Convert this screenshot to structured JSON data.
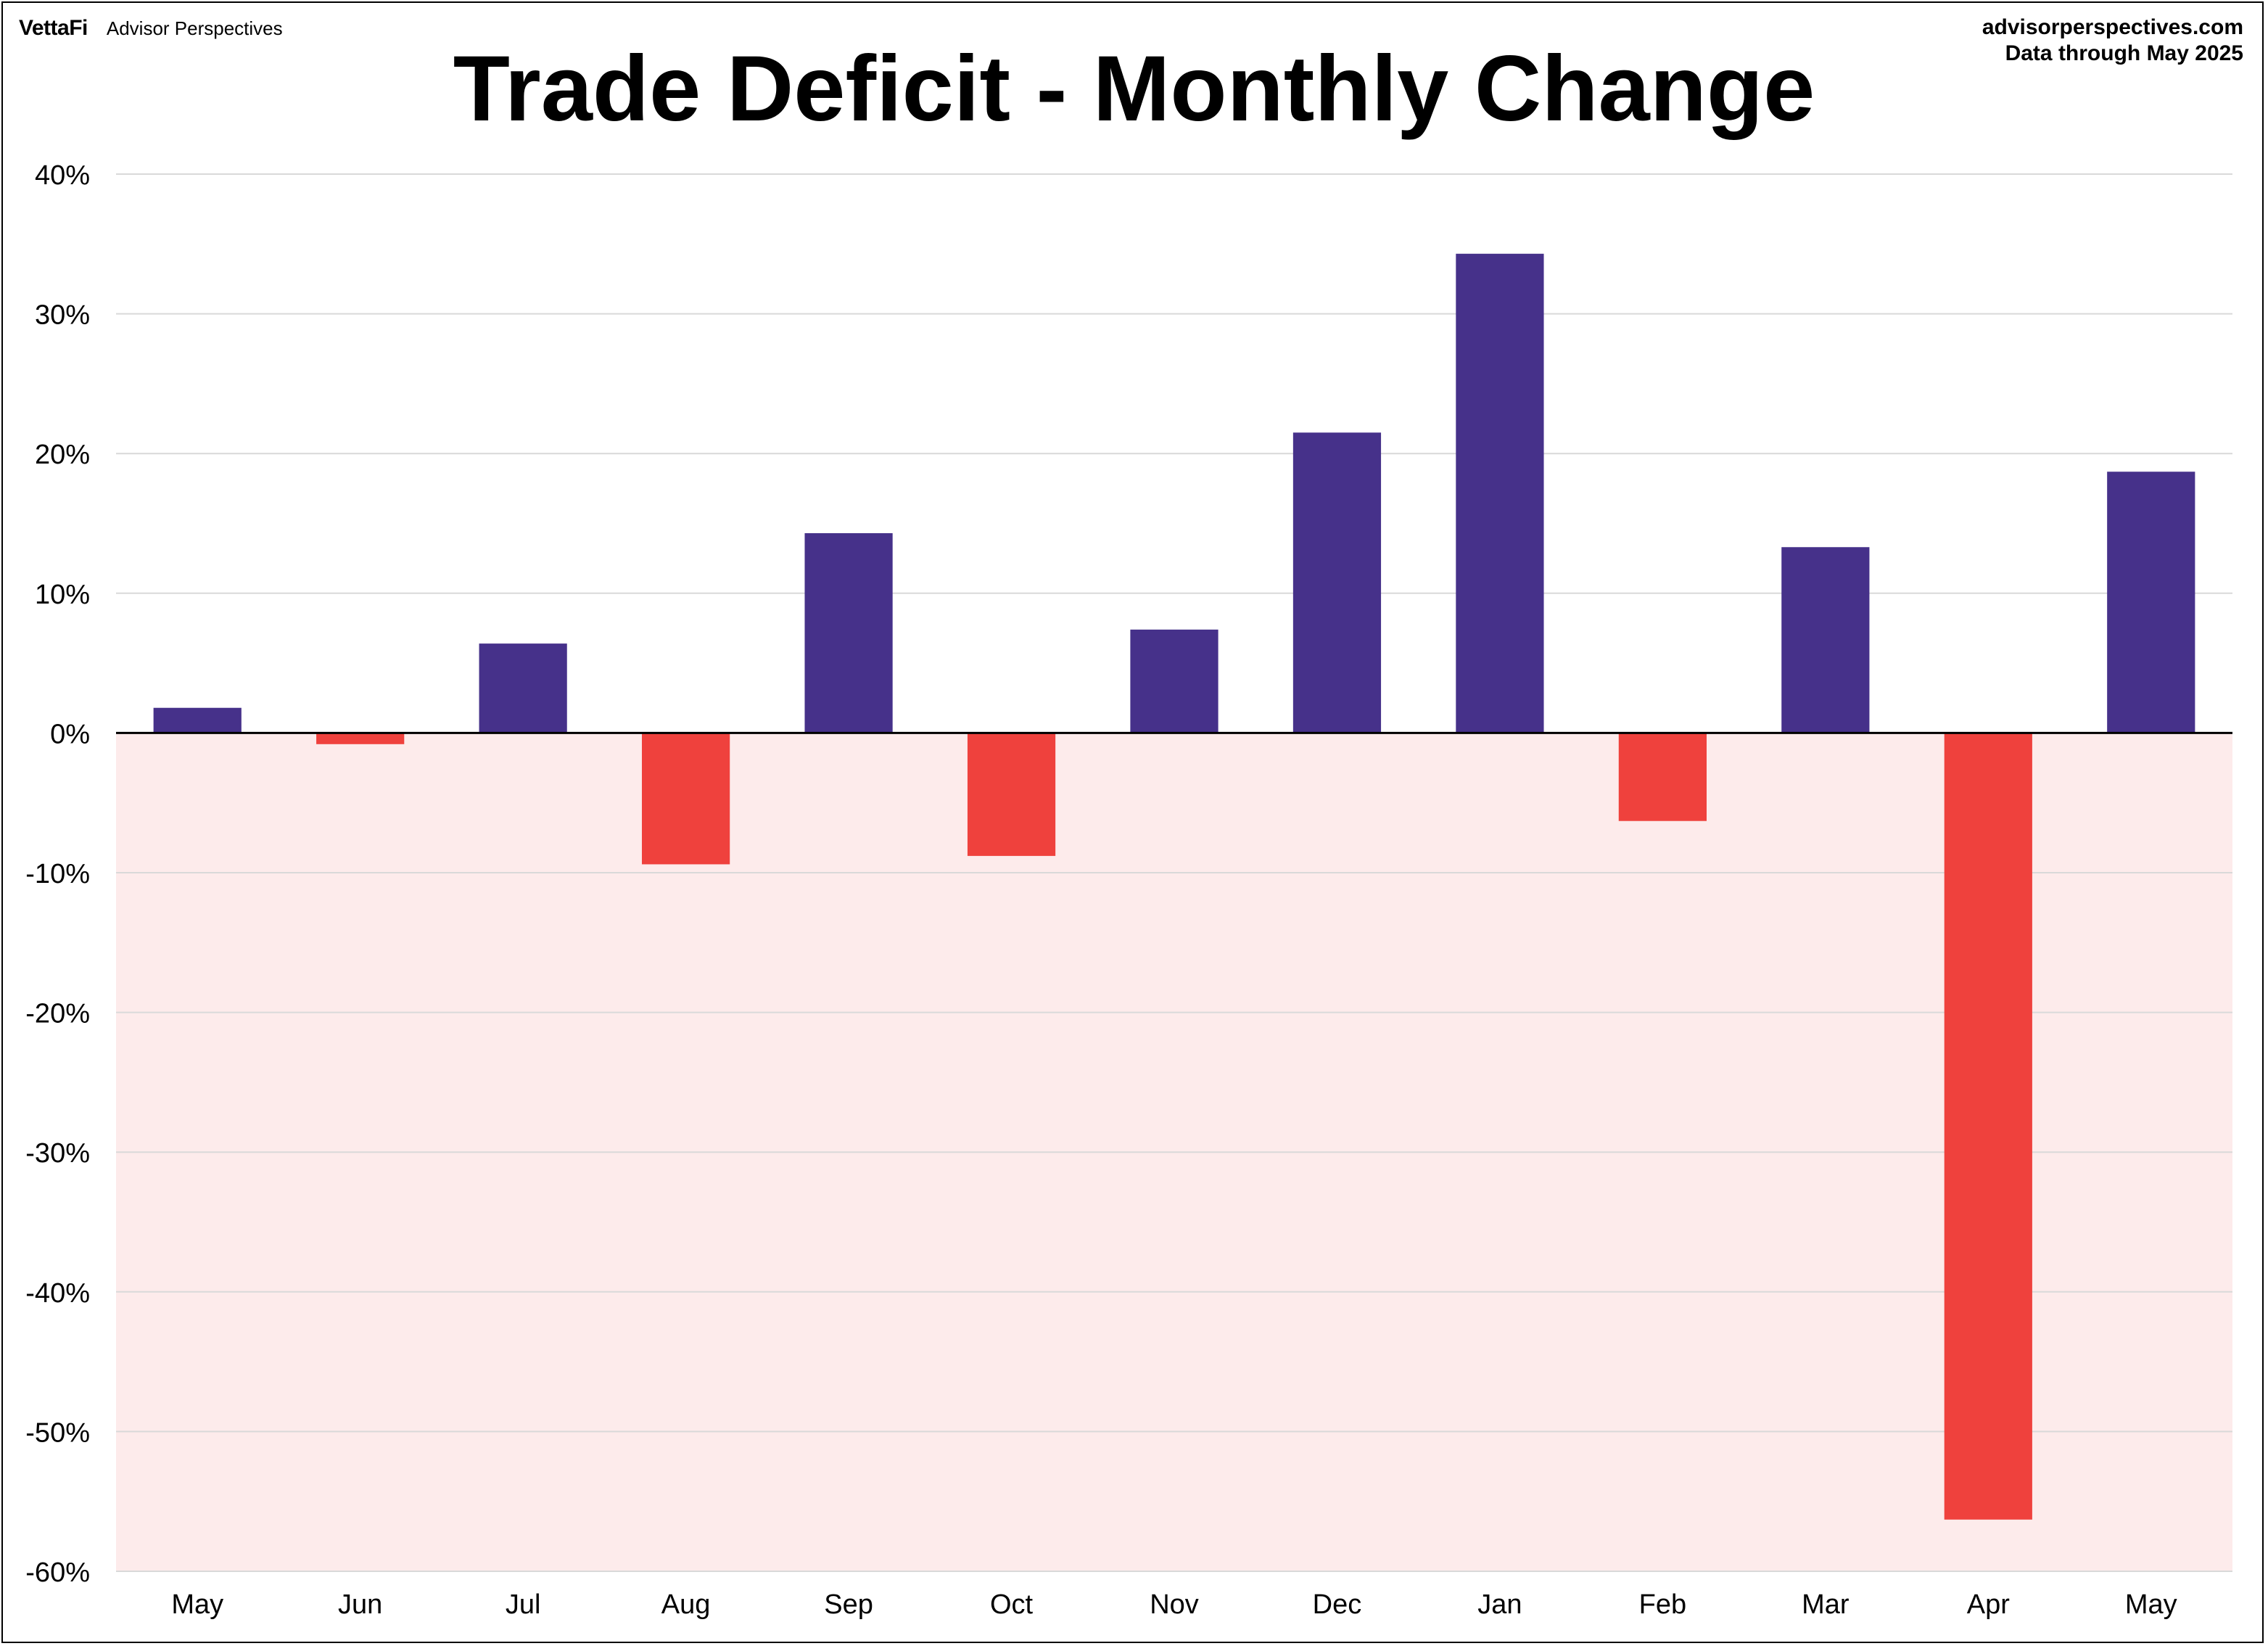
{
  "header": {
    "brand_logo": "VettaFi",
    "brand_name": "Advisor Perspectives",
    "source_line1": "advisorperspectives.com",
    "source_line2": "Data through May 2025"
  },
  "colors": {
    "positive": "#46318a",
    "negative": "#ef413d",
    "negative_region": "#fdebeb",
    "gridline": "#d9d9d9",
    "zero_line": "#000000"
  },
  "chart_data": {
    "type": "bar",
    "title": "Trade Deficit - Monthly Change",
    "xlabel": "",
    "ylabel": "",
    "ylim": [
      -60,
      40
    ],
    "yticks": [
      40,
      30,
      20,
      10,
      0,
      -10,
      -20,
      -30,
      -40,
      -50,
      -60
    ],
    "ytick_labels": [
      "40%",
      "30%",
      "20%",
      "10%",
      "0%",
      "-10%",
      "-20%",
      "-30%",
      "-40%",
      "-50%",
      "-60%"
    ],
    "grid": true,
    "legend": "none",
    "negative_region_shaded": true,
    "categories": [
      "May",
      "Jun",
      "Jul",
      "Aug",
      "Sep",
      "Oct",
      "Nov",
      "Dec",
      "Jan",
      "Feb",
      "Mar",
      "Apr",
      "May"
    ],
    "values": [
      1.8,
      -0.8,
      6.4,
      -9.4,
      14.3,
      -8.8,
      7.4,
      21.5,
      34.3,
      -6.3,
      13.3,
      -56.3,
      18.7
    ]
  }
}
